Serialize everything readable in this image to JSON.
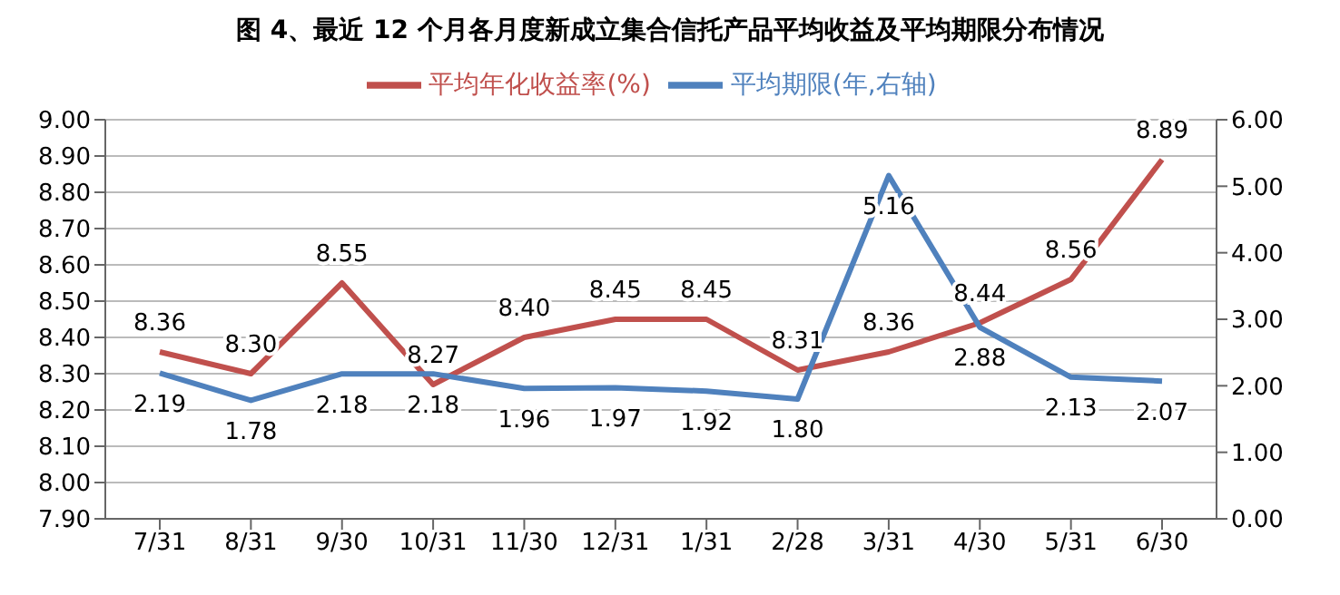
{
  "chart_data": {
    "type": "line",
    "title": "图 4、最近 12 个月各月度新成立集合信托产品平均收益及平均期限分布情况",
    "categories": [
      "7/31",
      "8/31",
      "9/30",
      "10/31",
      "11/30",
      "12/31",
      "1/31",
      "2/28",
      "3/31",
      "4/30",
      "5/31",
      "6/30"
    ],
    "series": [
      {
        "name": "平均年化收益率(%)",
        "color": "#c0504d",
        "values": [
          8.36,
          8.3,
          8.55,
          8.27,
          8.4,
          8.45,
          8.45,
          8.31,
          8.36,
          8.44,
          8.56,
          8.89
        ],
        "value_labels": [
          "8.36",
          "8.30",
          "8.55",
          "8.27",
          "8.40",
          "8.45",
          "8.45",
          "8.31",
          "8.36",
          "8.44",
          "8.56",
          "8.89"
        ]
      },
      {
        "name": "平均期限(年,右轴)",
        "color": "#4f81bd",
        "axis": "y2",
        "values": [
          2.19,
          1.78,
          2.18,
          2.18,
          1.96,
          1.97,
          1.92,
          1.8,
          5.16,
          2.88,
          2.13,
          2.07
        ],
        "value_labels": [
          "2.19",
          "1.78",
          "2.18",
          "2.18",
          "1.96",
          "1.97",
          "1.92",
          "1.80",
          "5.16",
          "2.88",
          "2.13",
          "2.07"
        ]
      }
    ],
    "ylim": [
      7.9,
      9.0
    ],
    "yticks": [
      {
        "value": 7.9,
        "label": "7.90"
      },
      {
        "value": 8.0,
        "label": "8.00"
      },
      {
        "value": 8.1,
        "label": "8.10"
      },
      {
        "value": 8.2,
        "label": "8.20"
      },
      {
        "value": 8.3,
        "label": "8.30"
      },
      {
        "value": 8.4,
        "label": "8.40"
      },
      {
        "value": 8.5,
        "label": "8.50"
      },
      {
        "value": 8.6,
        "label": "8.60"
      },
      {
        "value": 8.7,
        "label": "8.70"
      },
      {
        "value": 8.8,
        "label": "8.80"
      },
      {
        "value": 8.9,
        "label": "8.90"
      },
      {
        "value": 9.0,
        "label": "9.00"
      }
    ],
    "y2lim": [
      0,
      6
    ],
    "y2ticks": [
      {
        "value": 0,
        "label": "0.00"
      },
      {
        "value": 1,
        "label": "1.00"
      },
      {
        "value": 2,
        "label": "2.00"
      },
      {
        "value": 3,
        "label": "3.00"
      },
      {
        "value": 4,
        "label": "4.00"
      },
      {
        "value": 5,
        "label": "5.00"
      },
      {
        "value": 6,
        "label": "6.00"
      }
    ],
    "grid": "y",
    "legend": "top",
    "marker": "none",
    "line_style": "solid"
  }
}
